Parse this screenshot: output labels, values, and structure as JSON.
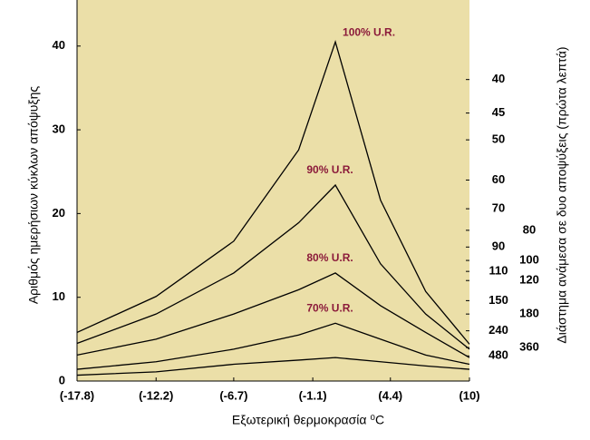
{
  "chart_data": {
    "type": "line",
    "xlabel": "Εξωτερική θερμοκρασία ⁰C",
    "ylabel": "Αριθμός ημερήσιων κύκλων απόψυξης",
    "y2label": "Διάστημα ανάμεσα σε δυο αποψύξεις (πρώτα λεπτά)",
    "x": [
      -17.8,
      -12.2,
      -6.7,
      -2.1,
      0.5,
      3.7,
      6.9,
      10
    ],
    "series": [
      {
        "name": "100% U.R.",
        "color": "#000000",
        "values": [
          5.8,
          10.1,
          16.7,
          27.6,
          40.5,
          21.6,
          10.7,
          4.4
        ]
      },
      {
        "name": "90% U.R.",
        "color": "#000000",
        "values": [
          4.5,
          8,
          12.9,
          18.9,
          23.4,
          14,
          8,
          3.8
        ]
      },
      {
        "name": "80% U.R.",
        "color": "#000000",
        "values": [
          3.1,
          5,
          8,
          10.9,
          12.9,
          9,
          5.8,
          2.8
        ]
      },
      {
        "name": "70% U.R.",
        "color": "#000000",
        "values": [
          1.4,
          2.3,
          3.8,
          5.5,
          6.9,
          5,
          3.1,
          2
        ]
      },
      {
        "color": "#000000",
        "values": [
          0.7,
          1.1,
          2,
          2.5,
          2.8,
          2.3,
          1.8,
          1.4
        ]
      }
    ],
    "label_color": "#8b1a3a",
    "background": "#ebdfa8",
    "xlim": [
      -17.8,
      10
    ],
    "xticks": [
      {
        "value": -17.8,
        "label": "(-17.8)"
      },
      {
        "value": -12.2,
        "label": "(-12.2)"
      },
      {
        "value": -6.7,
        "label": "(-6.7)"
      },
      {
        "value": -1.1,
        "label": "(-1.1)"
      },
      {
        "value": 4.4,
        "label": "(4.4)"
      },
      {
        "value": 10,
        "label": "(10)"
      }
    ],
    "ylim": [
      0,
      45.5
    ],
    "yticks": [
      0,
      10,
      20,
      30,
      40
    ],
    "y2scale": "reciprocal",
    "y2lim": [
      null,
      31.65
    ],
    "y2ticks": [
      40,
      45,
      50,
      60,
      70,
      80,
      90,
      100,
      110,
      120,
      150,
      180,
      240,
      360,
      480
    ]
  }
}
